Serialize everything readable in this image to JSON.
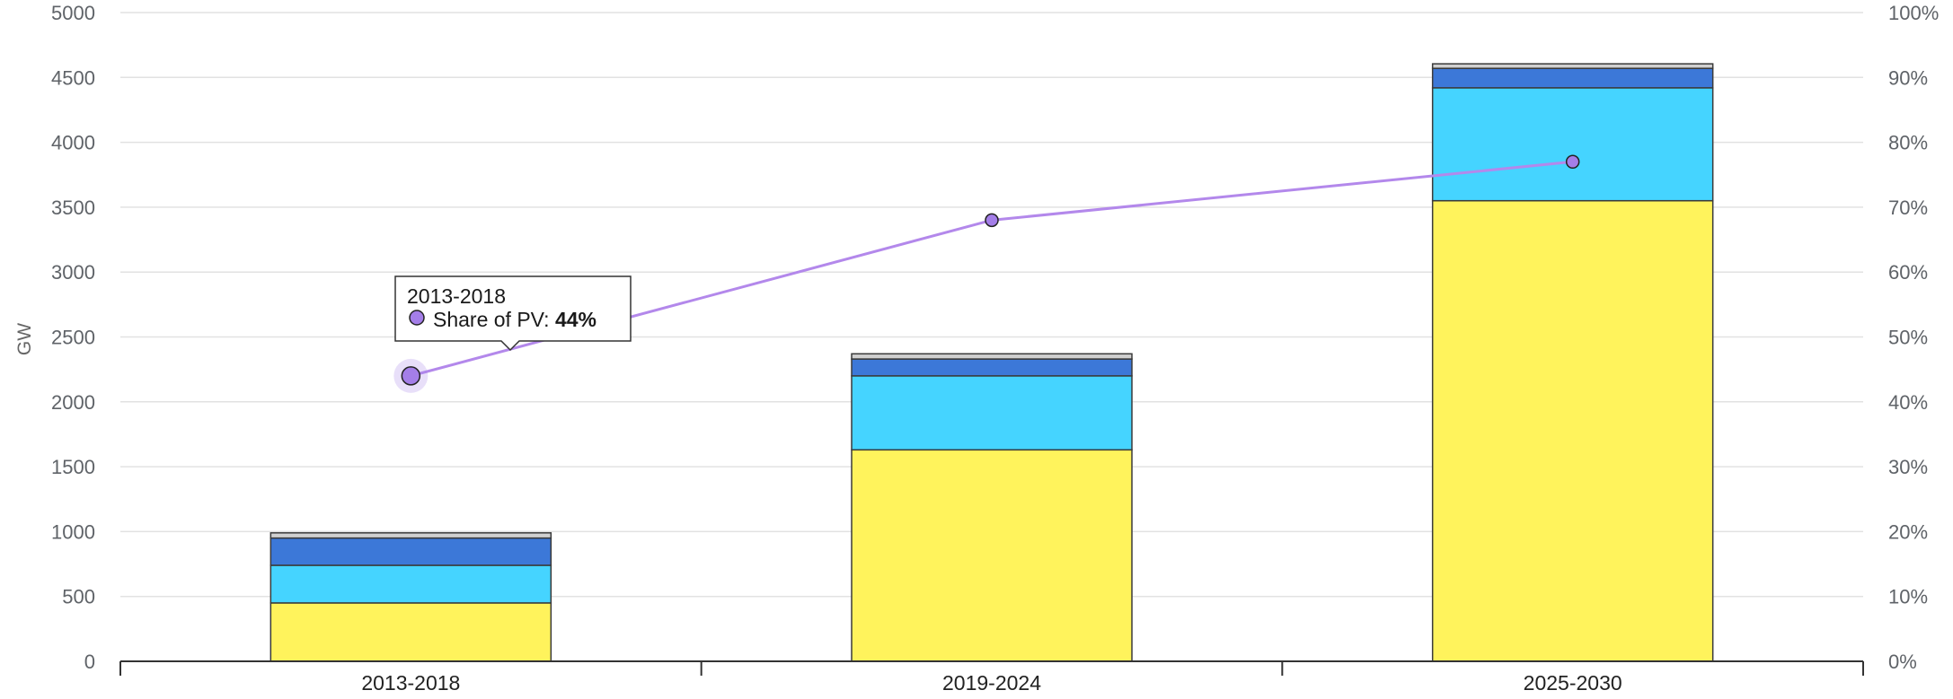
{
  "colors": {
    "grid": "#e2e2e2",
    "axis": "#333333",
    "bar_outline": "#3a3a3a",
    "share_line": "#b388eb",
    "share_marker": "#a47ee8",
    "tooltip_border": "#333333"
  },
  "chart_data": {
    "type": "bar",
    "stacked": true,
    "categories": [
      "2013-2018",
      "2019-2024",
      "2025-2030"
    ],
    "series": [
      {
        "color": "#fff35c",
        "values": [
          450,
          1630,
          3550
        ]
      },
      {
        "color": "#45d4ff",
        "values": [
          290,
          570,
          870
        ]
      },
      {
        "color": "#3c78d8",
        "values": [
          210,
          130,
          150
        ]
      },
      {
        "color": "#d0d0d0",
        "values": [
          40,
          40,
          35
        ]
      }
    ],
    "line_series": {
      "name": "Share of PV",
      "axis": "right",
      "values": [
        44,
        68,
        77
      ]
    },
    "ylabel": "GW",
    "ylim": [
      0,
      5000
    ],
    "yticks": [
      "0",
      "500",
      "1000",
      "1500",
      "2000",
      "2500",
      "3000",
      "3500",
      "4000",
      "4500",
      "5000"
    ],
    "y2lim": [
      0,
      100
    ],
    "y2ticks": [
      "0%",
      "10%",
      "20%",
      "30%",
      "40%",
      "50%",
      "60%",
      "70%",
      "80%",
      "90%",
      "100%"
    ],
    "grid": true,
    "tooltip": {
      "category_index": 0,
      "title": "2013-2018",
      "label": "Share of PV: ",
      "value": "44%"
    }
  }
}
